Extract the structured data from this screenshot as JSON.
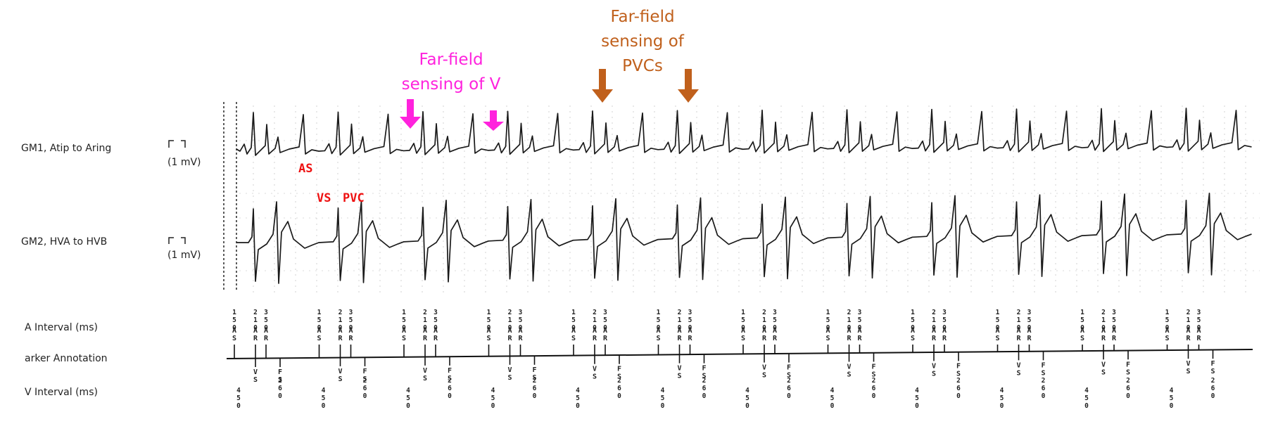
{
  "channels": {
    "egm1": {
      "label": "GM1, Atip to Aring",
      "scale": "(1 mV)"
    },
    "egm2": {
      "label": "GM2, HVA to HVB",
      "scale": "(1 mV)"
    }
  },
  "rows": {
    "a_interval": "A Interval (ms)",
    "marker": "arker Annotation",
    "v_interval": "V Interval (ms)"
  },
  "annotations": {
    "ff_v": [
      "Far-field",
      "sensing of V"
    ],
    "ff_pvc": [
      "Far-field",
      "sensing of",
      "PVCs"
    ],
    "as": "AS",
    "vs": "VS",
    "pvc": "PVC"
  },
  "colors": {
    "magenta": "#ff22dd",
    "brown": "#c0601c",
    "red": "#ee1111",
    "trace": "#1a1a1a"
  },
  "cycle_markers": [
    "AS",
    "AR",
    "AR"
  ],
  "cycle_v_markers": [
    "VS",
    "FS"
  ],
  "cycle_a_intervals": [
    "150",
    "210",
    "350"
  ],
  "cycle_v_intervals": [
    "450",
    "260"
  ]
}
